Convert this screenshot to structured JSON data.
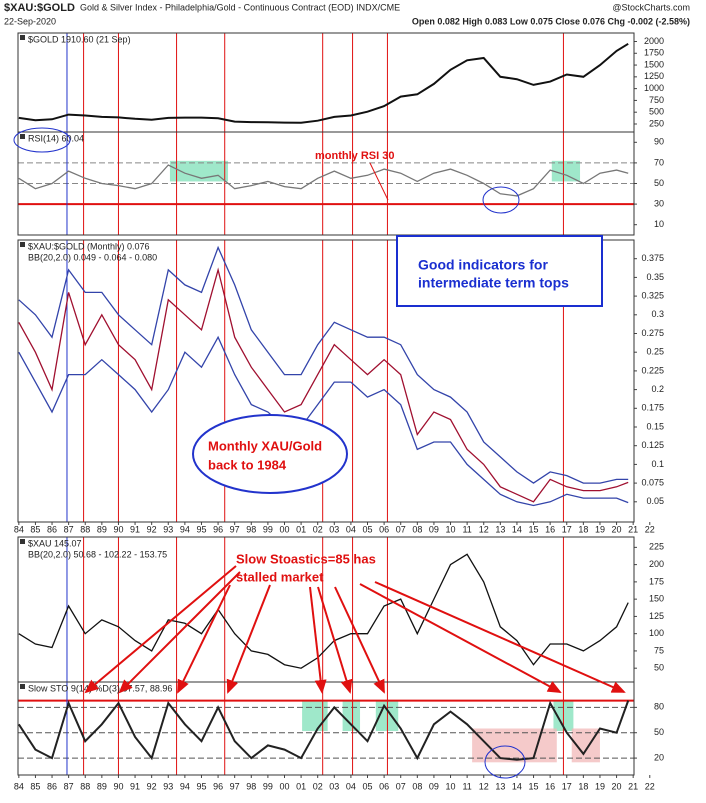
{
  "header": {
    "symbol": "$XAU:$GOLD",
    "name": "Gold & Silver Index - Philadelphia/Gold - Continuous Contract (EOD) INDX/CME",
    "brand": "@StockCharts.com",
    "date": "22-Sep-2020",
    "ohlc": "Open 0.082  High 0.083  Low 0.075  Close 0.076  Chg -0.002 (-2.58%)"
  },
  "annotations": {
    "rsi": "monthly RSI 30",
    "box": [
      "Good indicators for",
      "intermediate term tops"
    ],
    "ellipse": [
      "Monthly XAU/Gold",
      "back to 1984"
    ],
    "sto": [
      "Slow Stoastics=85 has",
      "stalled market"
    ]
  },
  "event_lines": [
    {
      "x": 1986.9,
      "color": "#2233cc"
    },
    {
      "x": 1987.9,
      "color": "#e01010"
    },
    {
      "x": 1990.0,
      "color": "#e01010"
    },
    {
      "x": 1993.5,
      "color": "#e01010"
    },
    {
      "x": 1996.4,
      "color": "#e01010"
    },
    {
      "x": 2002.3,
      "color": "#e01010"
    },
    {
      "x": 2004.1,
      "color": "#e01010"
    },
    {
      "x": 2006.2,
      "color": "#e01010"
    },
    {
      "x": 2016.8,
      "color": "#e01010"
    }
  ],
  "chart_data": [
    {
      "type": "line",
      "title": "$GOLD 1910.60 (21 Sep)",
      "xlim": [
        1983.95,
        2021.05
      ],
      "ylim": [
        80,
        2180
      ],
      "yticks": [
        2000,
        1750,
        1500,
        1250,
        1000,
        750,
        500,
        250
      ],
      "x": [
        1984,
        1985,
        1986,
        1987,
        1988,
        1989,
        1990,
        1991,
        1992,
        1993,
        1994,
        1995,
        1996,
        1997,
        1998,
        1999,
        2000,
        2001,
        2002,
        2003,
        2004,
        2005,
        2006,
        2007,
        2008,
        2009,
        2010,
        2011,
        2012,
        2013,
        2014,
        2015,
        2016,
        2017,
        2018,
        2019,
        2020,
        2020.7
      ],
      "series": [
        {
          "name": "$GOLD",
          "color": "#111",
          "values": [
            380,
            330,
            350,
            450,
            430,
            400,
            390,
            360,
            340,
            380,
            385,
            385,
            370,
            300,
            290,
            285,
            280,
            275,
            320,
            400,
            430,
            510,
            630,
            830,
            880,
            1100,
            1400,
            1600,
            1650,
            1250,
            1200,
            1080,
            1150,
            1300,
            1250,
            1500,
            1800,
            1950
          ]
        }
      ]
    },
    {
      "type": "line",
      "title": "RSI(14) 60.04",
      "xlim": [
        1983.95,
        2021.05
      ],
      "ylim": [
        0,
        100
      ],
      "yticks": [
        90,
        70,
        50,
        30,
        10
      ],
      "hlines": [
        {
          "value": 70,
          "color": "#888"
        },
        {
          "value": 50,
          "color": "#888"
        },
        {
          "value": 30,
          "color": "#e01010"
        }
      ],
      "highlights": [
        {
          "from": 1993.1,
          "to": 1996.6,
          "low": 52,
          "high": 72,
          "color": "#7fe0b8"
        },
        {
          "from": 2016.1,
          "to": 2017.8,
          "low": 52,
          "high": 72,
          "color": "#7fe0b8"
        }
      ],
      "x": [
        1984,
        1985,
        1986,
        1987,
        1988,
        1989,
        1990,
        1991,
        1992,
        1993,
        1994,
        1995,
        1996,
        1997,
        1998,
        1999,
        2000,
        2001,
        2002,
        2003,
        2004,
        2005,
        2006,
        2007,
        2008,
        2009,
        2010,
        2011,
        2012,
        2013,
        2014,
        2015,
        2016,
        2017,
        2018,
        2019,
        2020,
        2020.7
      ],
      "series": [
        {
          "name": "RSI",
          "color": "#777",
          "values": [
            55,
            45,
            50,
            62,
            55,
            50,
            48,
            45,
            50,
            68,
            60,
            55,
            58,
            45,
            48,
            52,
            47,
            45,
            55,
            62,
            55,
            58,
            64,
            60,
            52,
            60,
            64,
            58,
            50,
            40,
            38,
            45,
            63,
            58,
            50,
            60,
            63,
            60
          ]
        }
      ]
    },
    {
      "type": "line",
      "title": "$XAU:$GOLD (Monthly) 0.076",
      "subtitle": "BB(20,2.0) 0.049 - 0.064 - 0.080",
      "xlim": [
        1983.95,
        2021.05
      ],
      "ylim": [
        0.023,
        0.4
      ],
      "yticks": [
        0.375,
        0.35,
        0.325,
        0.3,
        0.275,
        0.25,
        0.225,
        0.2,
        0.175,
        0.15,
        0.125,
        0.1,
        0.075,
        0.05
      ],
      "xticks": [
        {
          "value": 1984,
          "label": "84"
        },
        {
          "value": 1985,
          "label": "85"
        },
        {
          "value": 1986,
          "label": "86"
        },
        {
          "value": 1987,
          "label": "87"
        },
        {
          "value": 1988,
          "label": "88"
        },
        {
          "value": 1989,
          "label": "89"
        },
        {
          "value": 1990,
          "label": "90"
        },
        {
          "value": 1991,
          "label": "91"
        },
        {
          "value": 1992,
          "label": "92"
        },
        {
          "value": 1993,
          "label": "93"
        },
        {
          "value": 1994,
          "label": "94"
        },
        {
          "value": 1995,
          "label": "95"
        },
        {
          "value": 1996,
          "label": "96"
        },
        {
          "value": 1997,
          "label": "97"
        },
        {
          "value": 1998,
          "label": "98"
        },
        {
          "value": 1999,
          "label": "99"
        },
        {
          "value": 2000,
          "label": "00"
        },
        {
          "value": 2001,
          "label": "01"
        },
        {
          "value": 2002,
          "label": "02"
        },
        {
          "value": 2003,
          "label": "03"
        },
        {
          "value": 2004,
          "label": "04"
        },
        {
          "value": 2005,
          "label": "05"
        },
        {
          "value": 2006,
          "label": "06"
        },
        {
          "value": 2007,
          "label": "07"
        },
        {
          "value": 2008,
          "label": "08"
        },
        {
          "value": 2009,
          "label": "09"
        },
        {
          "value": 2010,
          "label": "10"
        },
        {
          "value": 2011,
          "label": "11"
        },
        {
          "value": 2012,
          "label": "12"
        },
        {
          "value": 2013,
          "label": "13"
        },
        {
          "value": 2014,
          "label": "14"
        },
        {
          "value": 2015,
          "label": "15"
        },
        {
          "value": 2016,
          "label": "16"
        },
        {
          "value": 2017,
          "label": "17"
        },
        {
          "value": 2018,
          "label": "18"
        },
        {
          "value": 2019,
          "label": "19"
        },
        {
          "value": 2020,
          "label": "20"
        },
        {
          "value": 2021,
          "label": "21"
        },
        {
          "value": 2022,
          "label": "22"
        }
      ],
      "x": [
        1984,
        1985,
        1986,
        1987,
        1988,
        1989,
        1990,
        1991,
        1992,
        1993,
        1994,
        1995,
        1996,
        1997,
        1998,
        1999,
        2000,
        2001,
        2002,
        2003,
        2004,
        2005,
        2006,
        2007,
        2008,
        2009,
        2010,
        2011,
        2012,
        2013,
        2014,
        2015,
        2016,
        2017,
        2018,
        2019,
        2020,
        2020.7
      ],
      "series": [
        {
          "name": "Upper band",
          "color": "#3344aa",
          "values": [
            0.32,
            0.3,
            0.27,
            0.36,
            0.33,
            0.33,
            0.3,
            0.28,
            0.26,
            0.36,
            0.34,
            0.33,
            0.39,
            0.34,
            0.28,
            0.25,
            0.22,
            0.22,
            0.26,
            0.29,
            0.28,
            0.27,
            0.27,
            0.26,
            0.22,
            0.2,
            0.19,
            0.17,
            0.13,
            0.11,
            0.09,
            0.075,
            0.09,
            0.085,
            0.075,
            0.075,
            0.08,
            0.08
          ]
        },
        {
          "name": "Lower band",
          "color": "#3344aa",
          "values": [
            0.25,
            0.21,
            0.17,
            0.22,
            0.22,
            0.24,
            0.22,
            0.2,
            0.17,
            0.2,
            0.25,
            0.23,
            0.27,
            0.22,
            0.18,
            0.17,
            0.15,
            0.15,
            0.18,
            0.21,
            0.21,
            0.19,
            0.2,
            0.18,
            0.12,
            0.13,
            0.13,
            0.1,
            0.08,
            0.06,
            0.05,
            0.045,
            0.05,
            0.06,
            0.055,
            0.055,
            0.055,
            0.049
          ]
        },
        {
          "name": "$XAU:$GOLD",
          "color": "#a01030",
          "values": [
            0.29,
            0.25,
            0.2,
            0.33,
            0.26,
            0.3,
            0.26,
            0.24,
            0.2,
            0.32,
            0.3,
            0.28,
            0.36,
            0.27,
            0.23,
            0.2,
            0.17,
            0.18,
            0.22,
            0.26,
            0.24,
            0.22,
            0.24,
            0.22,
            0.14,
            0.17,
            0.16,
            0.12,
            0.1,
            0.07,
            0.06,
            0.05,
            0.08,
            0.07,
            0.065,
            0.065,
            0.07,
            0.076
          ]
        }
      ]
    },
    {
      "type": "line",
      "title": "$XAU 145.07",
      "subtitle": "BB(20,2.0) 50.68 - 102.22 - 153.75",
      "xlim": [
        1983.95,
        2021.05
      ],
      "ylim": [
        30,
        240
      ],
      "yticks": [
        225,
        200,
        175,
        150,
        125,
        100,
        75,
        50
      ],
      "x": [
        1984,
        1985,
        1986,
        1987,
        1988,
        1989,
        1990,
        1991,
        1992,
        1993,
        1994,
        1995,
        1996,
        1997,
        1998,
        1999,
        2000,
        2001,
        2002,
        2003,
        2004,
        2005,
        2006,
        2007,
        2008,
        2009,
        2010,
        2011,
        2012,
        2013,
        2014,
        2015,
        2016,
        2017,
        2018,
        2019,
        2020,
        2020.7
      ],
      "series": [
        {
          "name": "$XAU",
          "color": "#111",
          "values": [
            100,
            85,
            80,
            140,
            100,
            120,
            110,
            90,
            75,
            120,
            115,
            100,
            135,
            100,
            75,
            70,
            55,
            50,
            65,
            90,
            100,
            100,
            140,
            150,
            100,
            150,
            200,
            215,
            175,
            110,
            90,
            55,
            85,
            85,
            75,
            90,
            110,
            145
          ]
        }
      ]
    },
    {
      "type": "line",
      "title": "Slow STO 9(14) %D(3) 87.57, 88.96",
      "xlim": [
        1983.95,
        2021.05
      ],
      "ylim": [
        0,
        110
      ],
      "yticks": [
        80,
        50,
        20
      ],
      "hlines": [
        {
          "value": 88,
          "color": "#e01010"
        },
        {
          "value": 80,
          "color": "#555"
        },
        {
          "value": 50,
          "color": "#555"
        },
        {
          "value": 20,
          "color": "#555"
        }
      ],
      "highlights": [
        {
          "from": 2001.06,
          "to": 2002.6,
          "low": 52,
          "high": 88,
          "color": "#7fe0b8"
        },
        {
          "from": 2003.5,
          "to": 2004.55,
          "low": 52,
          "high": 88,
          "color": "#7fe0b8"
        },
        {
          "from": 2005.5,
          "to": 2006.85,
          "low": 52,
          "high": 88,
          "color": "#7fe0b8"
        },
        {
          "from": 2016.2,
          "to": 2017.4,
          "low": 52,
          "high": 88,
          "color": "#7fe0b8"
        },
        {
          "from": 2011.3,
          "to": 2016.4,
          "low": 15,
          "high": 55,
          "color": "#f2b8b8"
        },
        {
          "from": 2017.3,
          "to": 2019.0,
          "low": 15,
          "high": 55,
          "color": "#f2b8b8"
        }
      ],
      "xticks": [
        {
          "value": 1984,
          "label": "84"
        },
        {
          "value": 1985,
          "label": "85"
        },
        {
          "value": 1986,
          "label": "86"
        },
        {
          "value": 1987,
          "label": "87"
        },
        {
          "value": 1988,
          "label": "88"
        },
        {
          "value": 1989,
          "label": "89"
        },
        {
          "value": 1990,
          "label": "90"
        },
        {
          "value": 1991,
          "label": "91"
        },
        {
          "value": 1992,
          "label": "92"
        },
        {
          "value": 1993,
          "label": "93"
        },
        {
          "value": 1994,
          "label": "94"
        },
        {
          "value": 1995,
          "label": "95"
        },
        {
          "value": 1996,
          "label": "96"
        },
        {
          "value": 1997,
          "label": "97"
        },
        {
          "value": 1998,
          "label": "98"
        },
        {
          "value": 1999,
          "label": "99"
        },
        {
          "value": 2000,
          "label": "00"
        },
        {
          "value": 2001,
          "label": "01"
        },
        {
          "value": 2002,
          "label": "02"
        },
        {
          "value": 2003,
          "label": "03"
        },
        {
          "value": 2004,
          "label": "04"
        },
        {
          "value": 2005,
          "label": "05"
        },
        {
          "value": 2006,
          "label": "06"
        },
        {
          "value": 2007,
          "label": "07"
        },
        {
          "value": 2008,
          "label": "08"
        },
        {
          "value": 2009,
          "label": "09"
        },
        {
          "value": 2010,
          "label": "10"
        },
        {
          "value": 2011,
          "label": "11"
        },
        {
          "value": 2012,
          "label": "12"
        },
        {
          "value": 2013,
          "label": "13"
        },
        {
          "value": 2014,
          "label": "14"
        },
        {
          "value": 2015,
          "label": "15"
        },
        {
          "value": 2016,
          "label": "16"
        },
        {
          "value": 2017,
          "label": "17"
        },
        {
          "value": 2018,
          "label": "18"
        },
        {
          "value": 2019,
          "label": "19"
        },
        {
          "value": 2020,
          "label": "20"
        },
        {
          "value": 2021,
          "label": "21"
        },
        {
          "value": 2022,
          "label": "22"
        }
      ],
      "x": [
        1984,
        1985,
        1986,
        1987,
        1988,
        1989,
        1990,
        1991,
        1992,
        1993,
        1994,
        1995,
        1996,
        1997,
        1998,
        1999,
        2000,
        2001,
        2002,
        2003,
        2004,
        2005,
        2006,
        2007,
        2008,
        2009,
        2010,
        2011,
        2012,
        2013,
        2014,
        2015,
        2016,
        2017,
        2018,
        2019,
        2020,
        2020.7
      ],
      "series": [
        {
          "name": "Slow STO",
          "color": "#222",
          "values": [
            60,
            30,
            20,
            85,
            40,
            60,
            85,
            45,
            20,
            85,
            60,
            40,
            80,
            40,
            20,
            35,
            30,
            20,
            55,
            80,
            60,
            40,
            82,
            55,
            20,
            60,
            75,
            60,
            40,
            20,
            18,
            20,
            85,
            50,
            25,
            55,
            50,
            88
          ]
        }
      ]
    }
  ]
}
